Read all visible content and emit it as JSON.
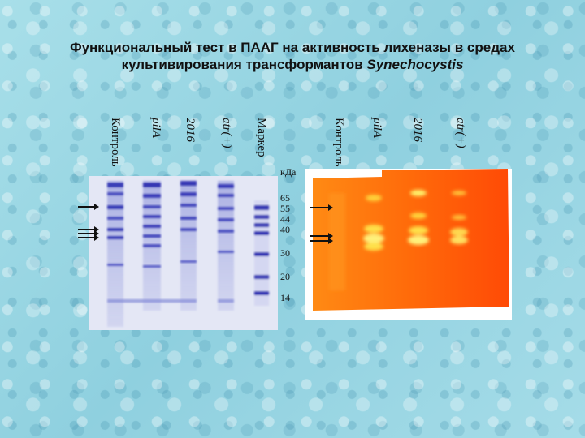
{
  "title": {
    "line1": "Функциональный тест в ПААГ на активность лихеназы в средах",
    "line2": "культивирования трансформантов",
    "organism": "Synechocystis"
  },
  "left_gel": {
    "lanes": [
      "Контроль",
      "pilA",
      "2016",
      "atr(+)",
      "Маркер"
    ]
  },
  "right_gel": {
    "lanes": [
      "Контроль",
      "pilA",
      "2016",
      "atr(+)"
    ]
  },
  "marker": {
    "unit": "кДа",
    "sizes": [
      "65",
      "55",
      "44",
      "40",
      "30",
      "20",
      "14"
    ]
  }
}
